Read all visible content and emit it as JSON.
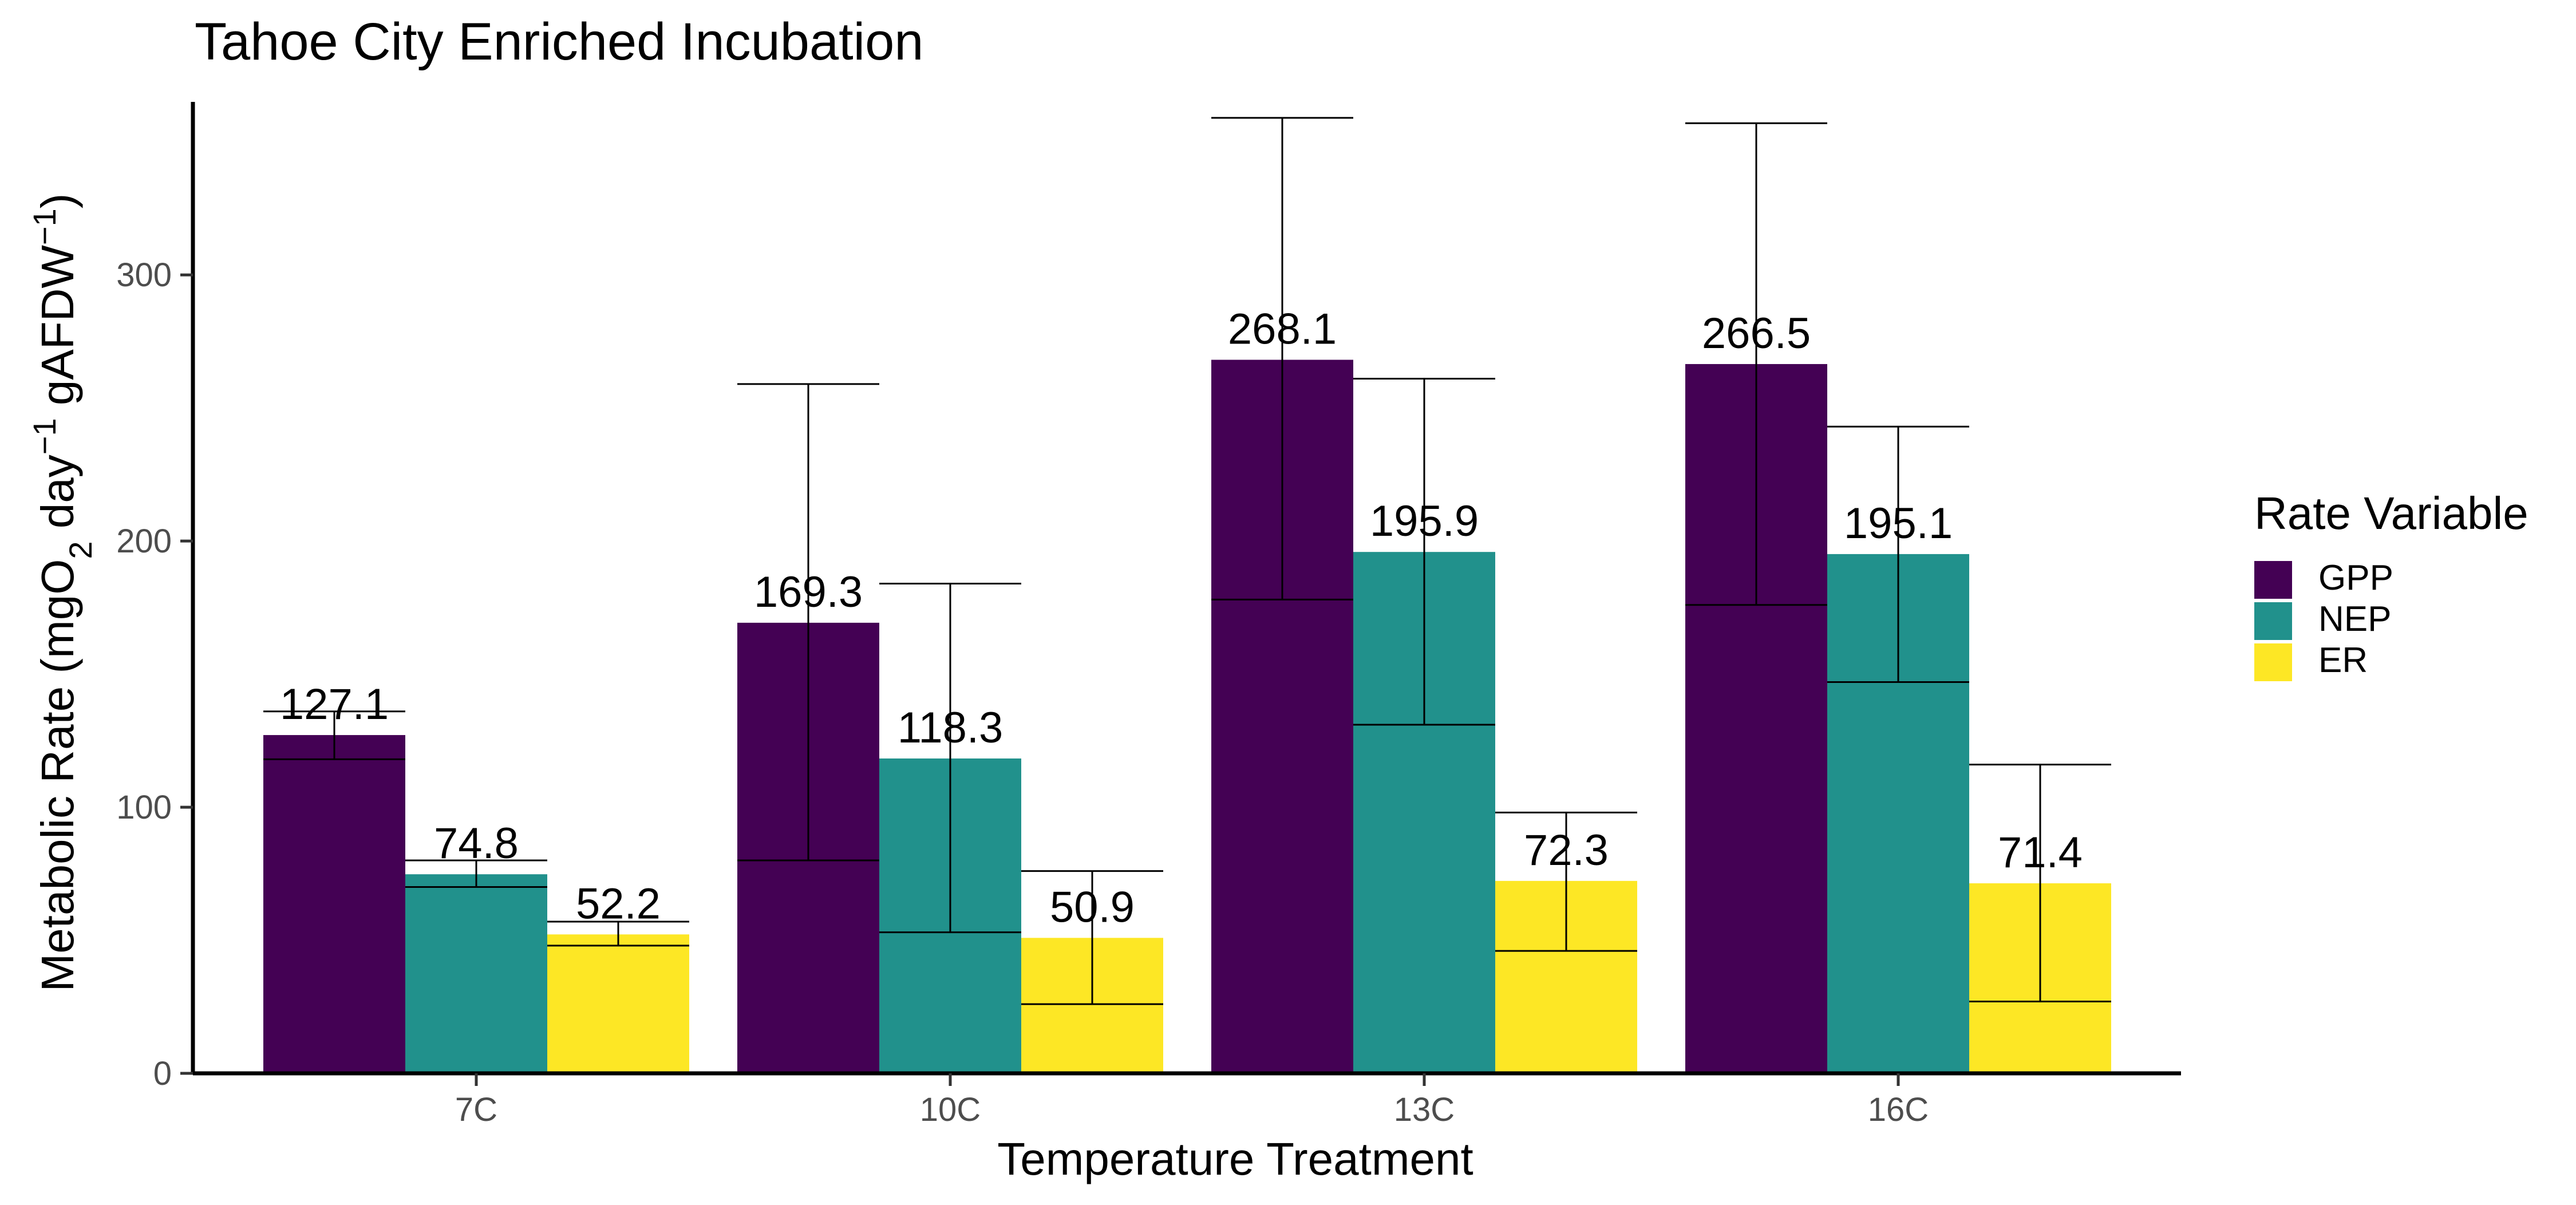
{
  "chart_data": {
    "type": "bar",
    "title": "Tahoe City Enriched Incubation",
    "xlabel": "Temperature Treatment",
    "ylabel": {
      "parts": [
        {
          "text": "Metabolic Rate (mgO",
          "shift": ""
        },
        {
          "text": "2",
          "shift": "sub"
        },
        {
          "text": " day",
          "shift": ""
        },
        {
          "text": "−1",
          "shift": "sup"
        },
        {
          "text": " gAFDW",
          "shift": ""
        },
        {
          "text": "−1",
          "shift": "sup"
        },
        {
          "text": ")",
          "shift": ""
        }
      ]
    },
    "categories": [
      "7C",
      "10C",
      "13C",
      "16C"
    ],
    "ylim": [
      0,
      365
    ],
    "yticks": [
      0,
      100,
      200,
      300
    ],
    "legend": {
      "title": "Rate Variable",
      "position": "right"
    },
    "series": [
      {
        "name": "GPP",
        "color": "#440154",
        "values": [
          127.1,
          169.3,
          268.1,
          266.5
        ],
        "labels": [
          "127.1",
          "169.3",
          "268.1",
          "266.5"
        ],
        "error_low": [
          118,
          80,
          178,
          176
        ],
        "error_high": [
          136,
          259,
          359,
          357
        ]
      },
      {
        "name": "NEP",
        "color": "#21918C",
        "values": [
          74.8,
          118.3,
          195.9,
          195.1
        ],
        "labels": [
          "74.8",
          "118.3",
          "195.9",
          "195.1"
        ],
        "error_low": [
          70,
          53,
          131,
          147
        ],
        "error_high": [
          80,
          184,
          261,
          243
        ]
      },
      {
        "name": "ER",
        "color": "#FDE725",
        "values": [
          52.2,
          50.9,
          72.3,
          71.4
        ],
        "labels": [
          "52.2",
          "50.9",
          "72.3",
          "71.4"
        ],
        "error_low": [
          48,
          26,
          46,
          27
        ],
        "error_high": [
          57,
          76,
          98,
          116
        ]
      }
    ]
  }
}
